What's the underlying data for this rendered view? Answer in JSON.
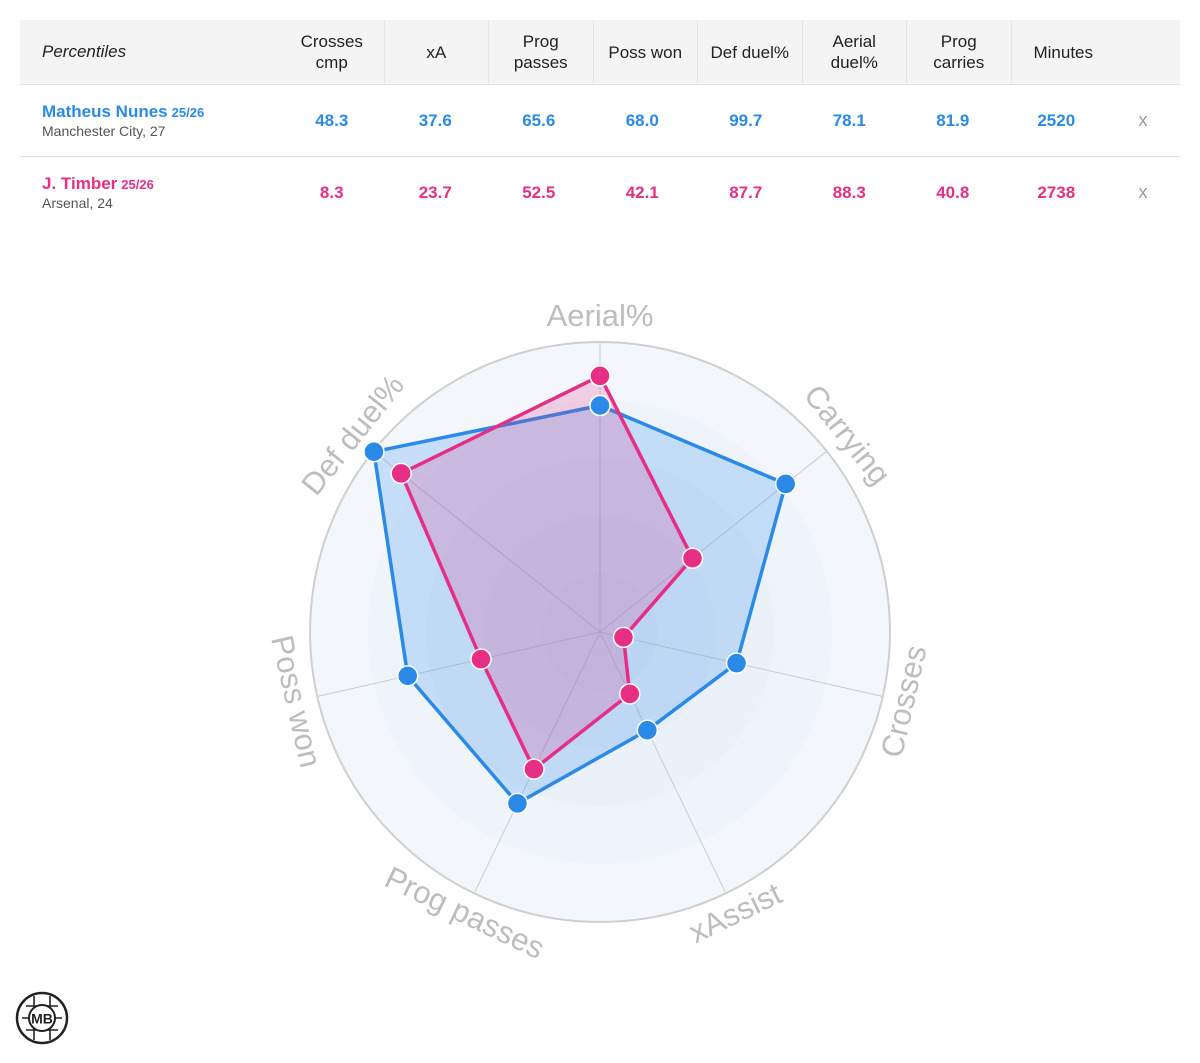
{
  "table": {
    "header_label": "Percentiles",
    "columns": [
      [
        "Crosses",
        "cmp"
      ],
      [
        "xA"
      ],
      [
        "Prog",
        "passes"
      ],
      [
        "Poss won"
      ],
      [
        "Def duel%"
      ],
      [
        "Aerial",
        "duel%"
      ],
      [
        "Prog",
        "carries"
      ],
      [
        "Minutes"
      ]
    ],
    "remove_label": "x"
  },
  "players": [
    {
      "name": "Matheus Nunes",
      "season": "25/26",
      "meta": "Manchester City, 27",
      "color": "#2b8ae8",
      "values": [
        "48.3",
        "37.6",
        "65.6",
        "68.0",
        "99.7",
        "78.1",
        "81.9",
        "2520"
      ]
    },
    {
      "name": "J. Timber",
      "season": "25/26",
      "meta": "Arsenal, 24",
      "color": "#e62f84",
      "values": [
        "8.3",
        "23.7",
        "52.5",
        "42.1",
        "87.7",
        "88.3",
        "40.8",
        "2738"
      ]
    }
  ],
  "chart_data": {
    "type": "radar",
    "axes": [
      "Aerial%",
      "Carrying",
      "Crosses",
      "xAssist",
      "Prog passes",
      "Poss won",
      "Def duel%"
    ],
    "range": [
      0,
      100
    ],
    "series": [
      {
        "name": "Matheus Nunes",
        "color": "#2b8ae8",
        "values": [
          78.1,
          81.9,
          48.3,
          37.6,
          65.6,
          68.0,
          99.7
        ]
      },
      {
        "name": "J. Timber",
        "color": "#e62f84",
        "values": [
          88.3,
          40.8,
          8.3,
          23.7,
          52.5,
          42.1,
          87.7
        ]
      }
    ]
  },
  "logo": {
    "text": "MB"
  }
}
